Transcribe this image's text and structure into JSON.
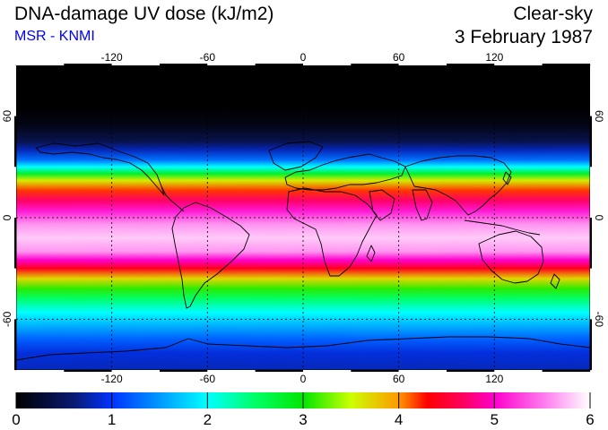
{
  "header": {
    "title": "DNA-damage UV dose (kJ/m2)",
    "source": "MSR - KNMI",
    "condition": "Clear-sky",
    "date": "3 February 1987"
  },
  "map": {
    "projection": "equirectangular",
    "lon_range": [
      -180,
      180
    ],
    "lat_range": [
      -90,
      90
    ],
    "lon_ticks": [
      {
        "value": -120,
        "label": "-120"
      },
      {
        "value": -60,
        "label": "-60"
      },
      {
        "value": 0,
        "label": "0"
      },
      {
        "value": 60,
        "label": "60"
      },
      {
        "value": 120,
        "label": "120"
      }
    ],
    "lat_ticks": [
      {
        "value": 60,
        "label": "60"
      },
      {
        "value": 0,
        "label": "0"
      },
      {
        "value": -60,
        "label": "-60"
      }
    ],
    "zonal_profile": [
      {
        "lat": 90,
        "dose": 0.0
      },
      {
        "lat": 65,
        "dose": 0.0
      },
      {
        "lat": 55,
        "dose": 0.1
      },
      {
        "lat": 45,
        "dose": 0.4
      },
      {
        "lat": 40,
        "dose": 0.8
      },
      {
        "lat": 34,
        "dose": 1.3
      },
      {
        "lat": 30,
        "dose": 2.0
      },
      {
        "lat": 26,
        "dose": 2.8
      },
      {
        "lat": 22,
        "dose": 3.6
      },
      {
        "lat": 16,
        "dose": 4.2
      },
      {
        "lat": 10,
        "dose": 4.7
      },
      {
        "lat": 4,
        "dose": 5.1
      },
      {
        "lat": -4,
        "dose": 5.6
      },
      {
        "lat": -12,
        "dose": 5.8
      },
      {
        "lat": -20,
        "dose": 5.6
      },
      {
        "lat": -25,
        "dose": 5.0
      },
      {
        "lat": -30,
        "dose": 4.4
      },
      {
        "lat": -36,
        "dose": 3.7
      },
      {
        "lat": -42,
        "dose": 3.1
      },
      {
        "lat": -48,
        "dose": 2.5
      },
      {
        "lat": -56,
        "dose": 2.0
      },
      {
        "lat": -64,
        "dose": 1.6
      },
      {
        "lat": -72,
        "dose": 1.2
      },
      {
        "lat": -80,
        "dose": 0.9
      },
      {
        "lat": -90,
        "dose": 0.8
      }
    ]
  },
  "colorbar": {
    "min": 0,
    "max": 6,
    "labels": [
      "0",
      "1",
      "2",
      "3",
      "4",
      "5",
      "6"
    ],
    "stops": [
      {
        "value": 0.0,
        "color": "#000000"
      },
      {
        "value": 0.6,
        "color": "#0a1a70"
      },
      {
        "value": 1.0,
        "color": "#0033ff"
      },
      {
        "value": 1.5,
        "color": "#0099ff"
      },
      {
        "value": 2.0,
        "color": "#00ffff"
      },
      {
        "value": 2.5,
        "color": "#00ff66"
      },
      {
        "value": 3.0,
        "color": "#00e600"
      },
      {
        "value": 3.5,
        "color": "#ccff00"
      },
      {
        "value": 4.0,
        "color": "#ff9900"
      },
      {
        "value": 4.3,
        "color": "#ff0000"
      },
      {
        "value": 4.7,
        "color": "#ff0066"
      },
      {
        "value": 5.0,
        "color": "#ff00cc"
      },
      {
        "value": 5.5,
        "color": "#ff77ee"
      },
      {
        "value": 6.0,
        "color": "#ffffff"
      }
    ]
  }
}
